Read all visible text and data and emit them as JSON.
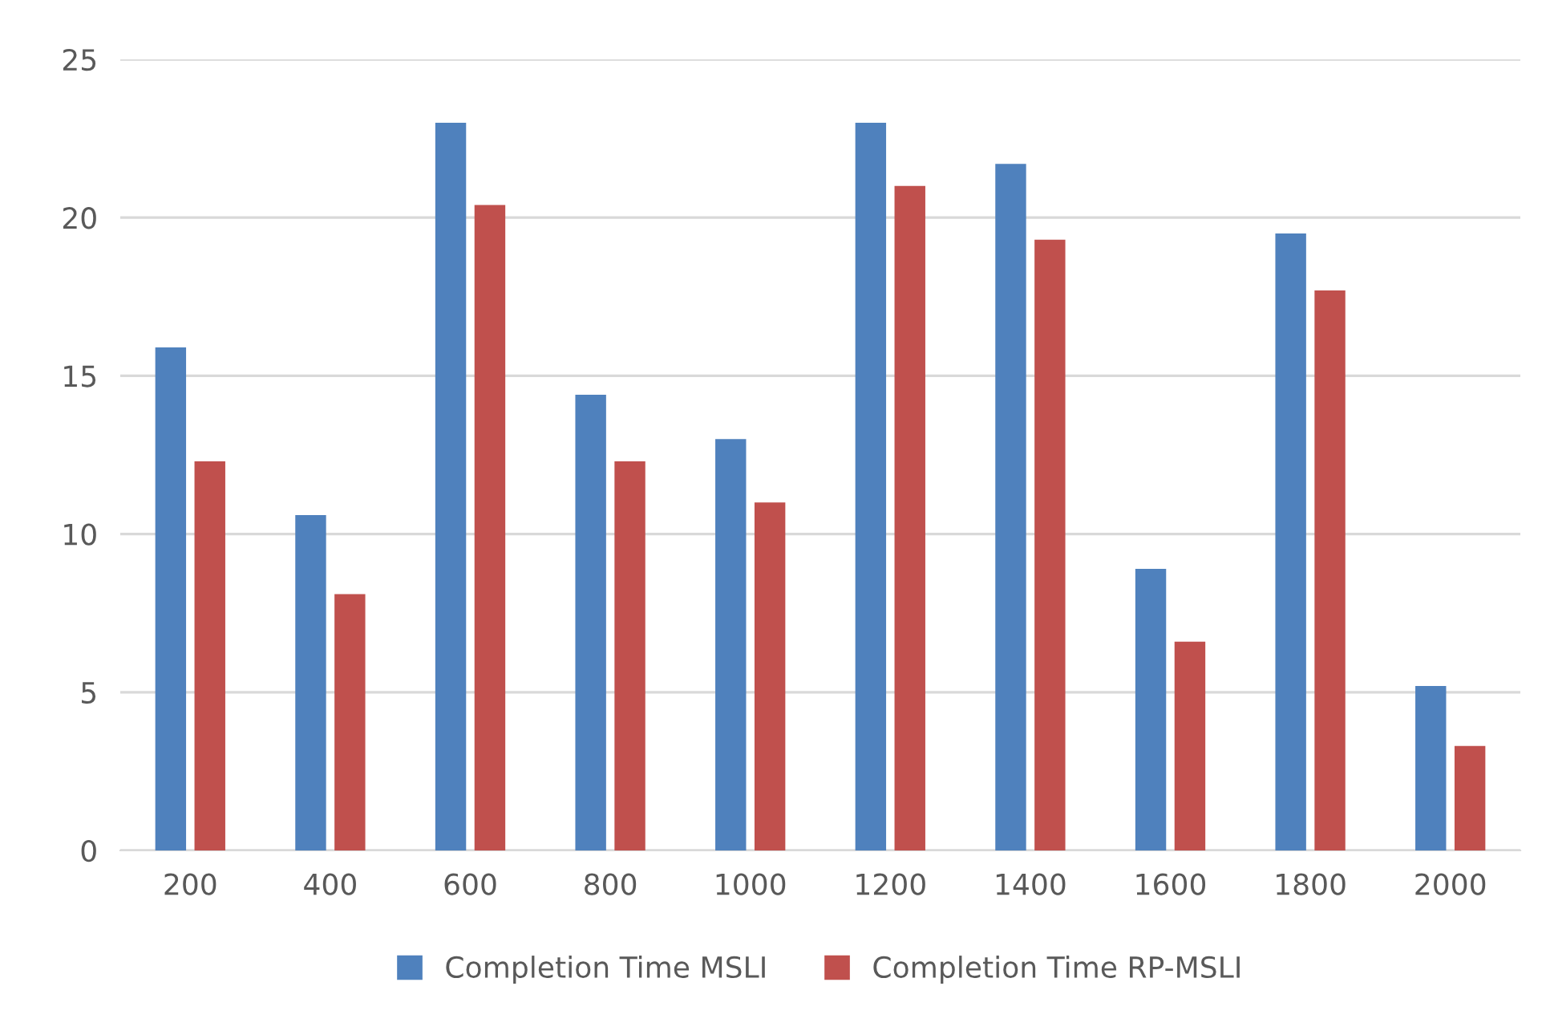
{
  "chart_data": {
    "type": "bar",
    "categories": [
      "200",
      "400",
      "600",
      "800",
      "1000",
      "1200",
      "1400",
      "1600",
      "1800",
      "2000"
    ],
    "series": [
      {
        "name": "Completion Time MSLI",
        "color": "#4f81bd",
        "values": [
          15.9,
          10.6,
          23.0,
          14.4,
          13.0,
          23.0,
          21.7,
          8.9,
          19.5,
          5.2
        ]
      },
      {
        "name": "Completion Time RP-MSLI",
        "color": "#c0504d",
        "values": [
          12.3,
          8.1,
          20.4,
          12.3,
          11.0,
          21.0,
          19.3,
          6.6,
          17.7,
          3.3
        ]
      }
    ],
    "ylim": [
      0,
      25
    ],
    "yticks": [
      0,
      5,
      10,
      15,
      20,
      25
    ],
    "grid": "y",
    "legend": "bottom"
  }
}
